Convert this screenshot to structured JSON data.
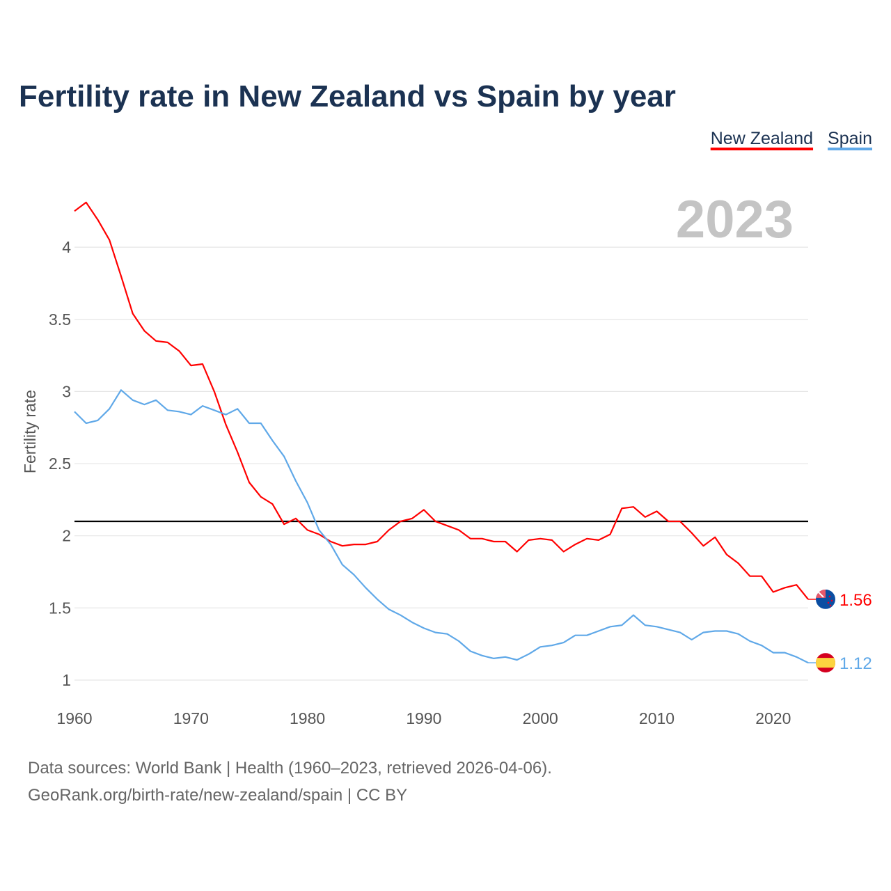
{
  "chart_data": {
    "type": "line",
    "title": "Fertility rate in New Zealand vs Spain by year",
    "xlabel": "",
    "ylabel": "Fertility rate",
    "xlim": [
      1960,
      2023
    ],
    "ylim": [
      0.85,
      4.35
    ],
    "x_ticks": [
      1960,
      1970,
      1980,
      1990,
      2000,
      2010,
      2020
    ],
    "y_ticks": [
      1,
      1.5,
      2,
      2.5,
      3,
      3.5,
      4
    ],
    "y_tick_labels": [
      "1",
      "1.5",
      "2",
      "2.5",
      "3",
      "3.5",
      "4"
    ],
    "grid": true,
    "legend_position": "top-right",
    "year_label": "2023",
    "reference_line": {
      "y": 2.1,
      "color": "#000000"
    },
    "x": [
      1960,
      1961,
      1962,
      1963,
      1964,
      1965,
      1966,
      1967,
      1968,
      1969,
      1970,
      1971,
      1972,
      1973,
      1974,
      1975,
      1976,
      1977,
      1978,
      1979,
      1980,
      1981,
      1982,
      1983,
      1984,
      1985,
      1986,
      1987,
      1988,
      1989,
      1990,
      1991,
      1992,
      1993,
      1994,
      1995,
      1996,
      1997,
      1998,
      1999,
      2000,
      2001,
      2002,
      2003,
      2004,
      2005,
      2006,
      2007,
      2008,
      2009,
      2010,
      2011,
      2012,
      2013,
      2014,
      2015,
      2016,
      2017,
      2018,
      2019,
      2020,
      2021,
      2022,
      2023
    ],
    "series": [
      {
        "name": "New Zealand",
        "color": "#ff0000",
        "end_label": "1.56",
        "flag": "new-zealand-flag",
        "values": [
          4.25,
          4.31,
          4.19,
          4.05,
          3.8,
          3.54,
          3.42,
          3.35,
          3.34,
          3.28,
          3.18,
          3.19,
          3.0,
          2.77,
          2.58,
          2.37,
          2.27,
          2.22,
          2.08,
          2.12,
          2.04,
          2.01,
          1.96,
          1.93,
          1.94,
          1.94,
          1.96,
          2.04,
          2.1,
          2.12,
          2.18,
          2.1,
          2.07,
          2.04,
          1.98,
          1.98,
          1.96,
          1.96,
          1.89,
          1.97,
          1.98,
          1.97,
          1.89,
          1.94,
          1.98,
          1.97,
          2.01,
          2.19,
          2.2,
          2.13,
          2.17,
          2.1,
          2.1,
          2.02,
          1.93,
          1.99,
          1.87,
          1.81,
          1.72,
          1.72,
          1.61,
          1.64,
          1.66,
          1.56
        ]
      },
      {
        "name": "Spain",
        "color": "#5fa8e8",
        "end_label": "1.12",
        "flag": "spain-flag",
        "values": [
          2.86,
          2.78,
          2.8,
          2.88,
          3.01,
          2.94,
          2.91,
          2.94,
          2.87,
          2.86,
          2.84,
          2.9,
          2.87,
          2.84,
          2.88,
          2.78,
          2.78,
          2.66,
          2.55,
          2.38,
          2.23,
          2.04,
          1.94,
          1.8,
          1.73,
          1.64,
          1.56,
          1.49,
          1.45,
          1.4,
          1.36,
          1.33,
          1.32,
          1.27,
          1.2,
          1.17,
          1.15,
          1.16,
          1.14,
          1.18,
          1.23,
          1.24,
          1.26,
          1.31,
          1.31,
          1.34,
          1.37,
          1.38,
          1.45,
          1.38,
          1.37,
          1.35,
          1.33,
          1.28,
          1.33,
          1.34,
          1.34,
          1.32,
          1.27,
          1.24,
          1.19,
          1.19,
          1.16,
          1.12
        ]
      }
    ]
  },
  "footer": {
    "line1": "Data sources: World Bank | Health (1960–2023, retrieved 2026-04-06).",
    "line2": "GeoRank.org/birth-rate/new-zealand/spain | CC BY"
  }
}
